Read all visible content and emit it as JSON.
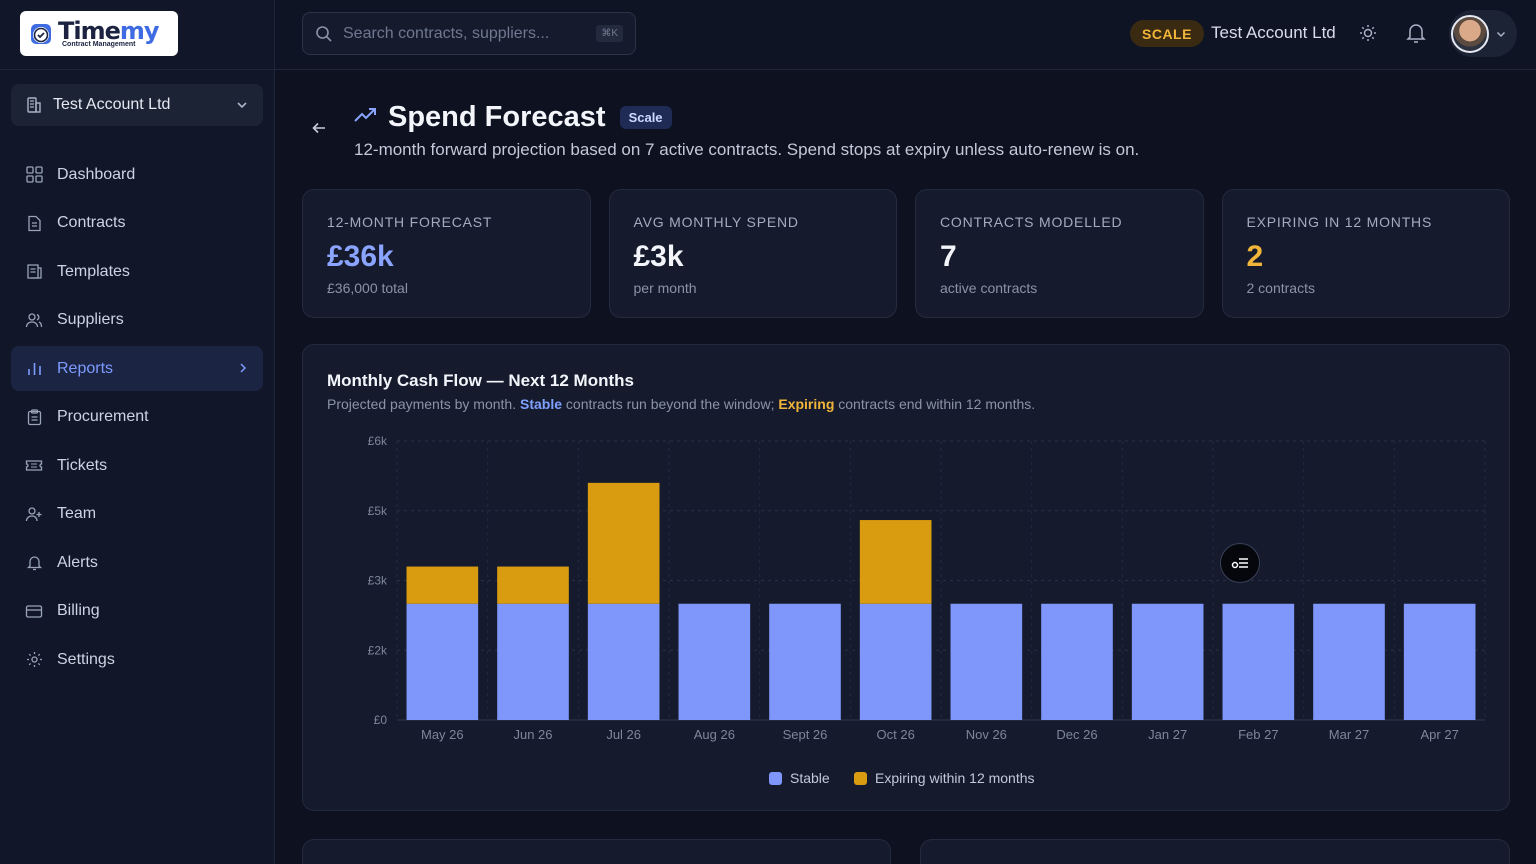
{
  "brand": {
    "title_a": "Time",
    "title_b": "my",
    "subtitle": "Contract Management"
  },
  "account_switch": {
    "name": "Test Account Ltd"
  },
  "sidebar": {
    "items": [
      {
        "label": "Dashboard",
        "icon": "grid-icon"
      },
      {
        "label": "Contracts",
        "icon": "document-icon"
      },
      {
        "label": "Templates",
        "icon": "templates-icon"
      },
      {
        "label": "Suppliers",
        "icon": "users-icon"
      },
      {
        "label": "Reports",
        "icon": "bar-chart-icon",
        "active": true
      },
      {
        "label": "Procurement",
        "icon": "clipboard-icon"
      },
      {
        "label": "Tickets",
        "icon": "ticket-icon"
      },
      {
        "label": "Team",
        "icon": "user-plus-icon"
      },
      {
        "label": "Alerts",
        "icon": "bell-icon"
      },
      {
        "label": "Billing",
        "icon": "card-icon"
      },
      {
        "label": "Settings",
        "icon": "gear-icon"
      }
    ]
  },
  "topbar": {
    "search_placeholder": "Search contracts, suppliers...",
    "search_shortcut": "⌘K",
    "plan_badge": "SCALE",
    "account_name": "Test Account Ltd"
  },
  "page": {
    "title": "Spend Forecast",
    "pill": "Scale",
    "subtitle": "12-month forward projection based on 7 active contracts. Spend stops at expiry unless auto-renew is on."
  },
  "cards": [
    {
      "label": "12-MONTH FORECAST",
      "value": "£36k",
      "sub": "£36,000 total"
    },
    {
      "label": "AVG MONTHLY SPEND",
      "value": "£3k",
      "sub": "per month"
    },
    {
      "label": "CONTRACTS MODELLED",
      "value": "7",
      "sub": "active contracts"
    },
    {
      "label": "EXPIRING IN 12 MONTHS",
      "value": "2",
      "sub": "2 contracts"
    }
  ],
  "chart_card": {
    "title": "Monthly Cash Flow — Next 12 Months",
    "sub_a": "Projected payments by month. ",
    "sub_stable": "Stable",
    "sub_b": " contracts run beyond the window; ",
    "sub_exp": "Expiring",
    "sub_c": " contracts end within 12 months."
  },
  "colors": {
    "stable": "#7f97fb",
    "expiring": "#d99c10",
    "accent": "#7d9bff"
  },
  "chart_data": {
    "type": "bar",
    "stacked": true,
    "categories": [
      "May 26",
      "Jun 26",
      "Jul 26",
      "Aug 26",
      "Sept 26",
      "Oct 26",
      "Nov 26",
      "Dec 26",
      "Jan 27",
      "Feb 27",
      "Mar 27",
      "Apr 27"
    ],
    "series": [
      {
        "name": "Stable",
        "values": [
          2500,
          2500,
          2500,
          2500,
          2500,
          2500,
          2500,
          2500,
          2500,
          2500,
          2500,
          2500
        ]
      },
      {
        "name": "Expiring within 12 months",
        "values": [
          800,
          800,
          2600,
          0,
          0,
          1800,
          0,
          0,
          0,
          0,
          0,
          0
        ]
      }
    ],
    "ytick_labels": [
      "£0",
      "£2k",
      "£3k",
      "£5k",
      "£6k"
    ],
    "ytick_values": [
      0,
      1500,
      3000,
      4500,
      6000
    ],
    "ylim": [
      0,
      6000
    ],
    "grid": true,
    "legend_position": "bottom-center"
  }
}
